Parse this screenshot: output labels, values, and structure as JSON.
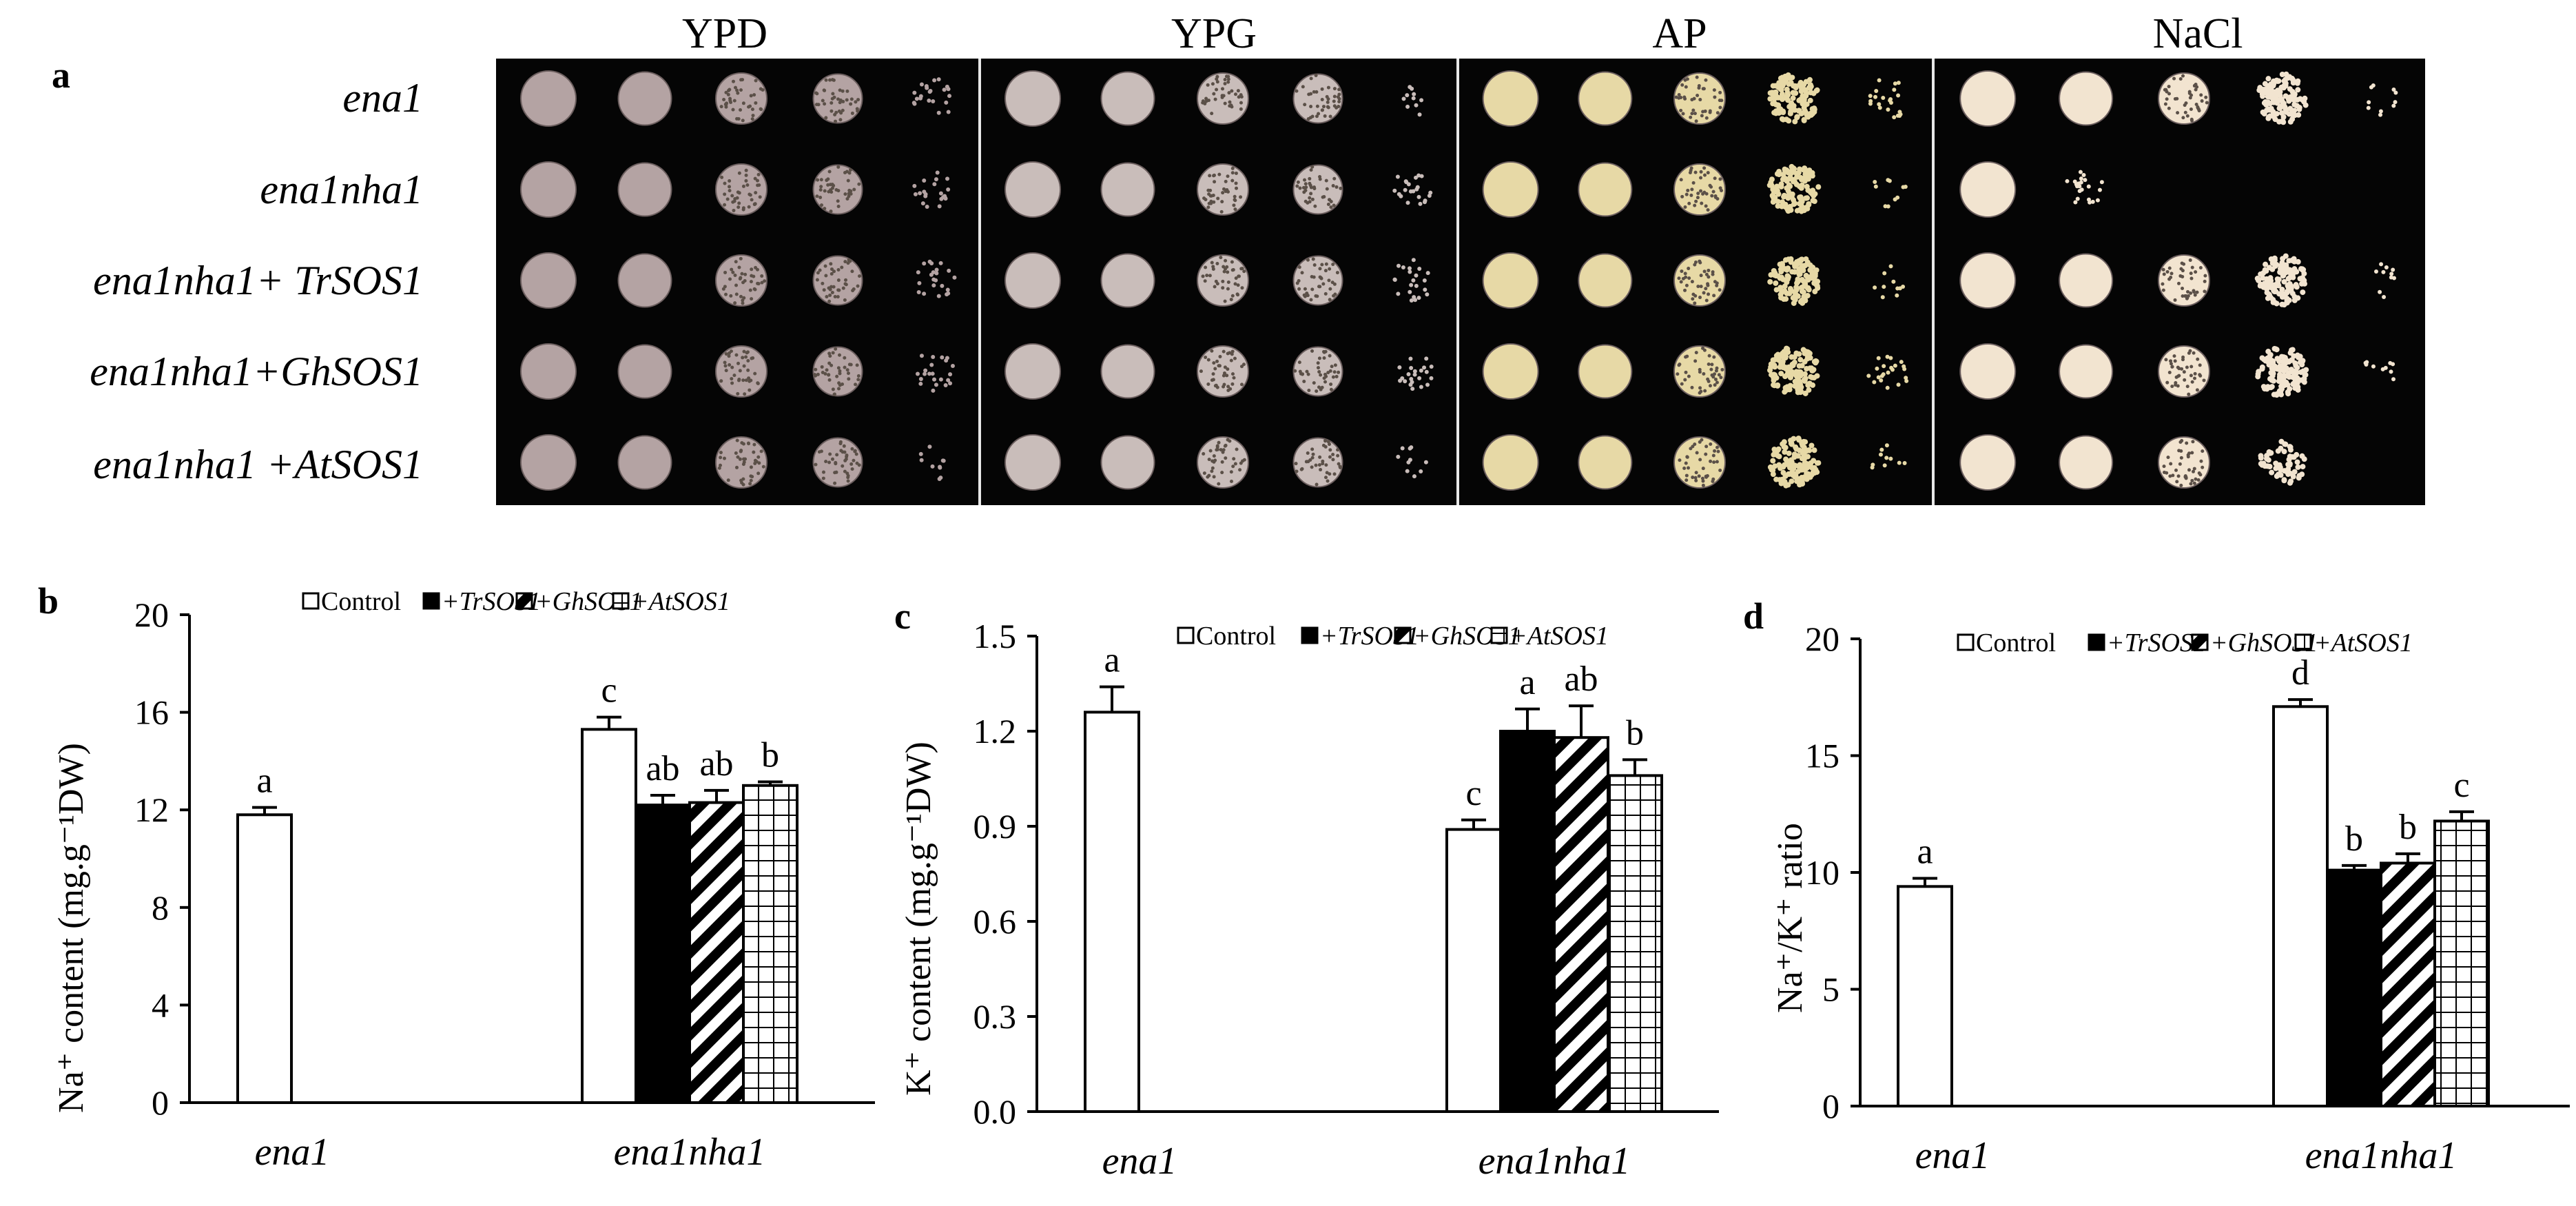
{
  "panel_a": {
    "label": "a",
    "media": [
      "YPD",
      "YPG",
      "AP",
      "NaCl"
    ],
    "strains": [
      "ena1",
      "ena1nha1",
      "ena1nha1+ TrSOS1",
      "ena1nha1+GhSOS1",
      "ena1nha1 +AtSOS1"
    ],
    "colony_growth_levels": {
      "YPD": [
        [
          5,
          5,
          5,
          5,
          2
        ],
        [
          5,
          5,
          5,
          5,
          2
        ],
        [
          5,
          5,
          5,
          5,
          2
        ],
        [
          5,
          5,
          5,
          5,
          2
        ],
        [
          5,
          5,
          5,
          5,
          1
        ]
      ],
      "YPG": [
        [
          5,
          5,
          5,
          5,
          1
        ],
        [
          5,
          5,
          5,
          5,
          2
        ],
        [
          5,
          5,
          5,
          5,
          2
        ],
        [
          5,
          5,
          5,
          5,
          2
        ],
        [
          5,
          5,
          5,
          5,
          1
        ]
      ],
      "AP": [
        [
          5,
          5,
          5,
          4,
          2
        ],
        [
          5,
          5,
          5,
          4,
          1
        ],
        [
          5,
          5,
          5,
          4,
          1
        ],
        [
          5,
          5,
          5,
          4,
          2
        ],
        [
          5,
          5,
          5,
          4,
          1
        ]
      ],
      "NaCl": [
        [
          5,
          5,
          5,
          4,
          1
        ],
        [
          5,
          2,
          0,
          0,
          0
        ],
        [
          5,
          5,
          5,
          4,
          1
        ],
        [
          5,
          5,
          5,
          4,
          1
        ],
        [
          5,
          5,
          5,
          3,
          0
        ]
      ]
    },
    "colors": {
      "background": "#050505",
      "colony_ypd": "#b4a3a3",
      "colony_ypg": "#c9bdba",
      "colony_ap": "#e7d9a6",
      "colony_nacl": "#f2e4d0"
    }
  },
  "legend": [
    {
      "label": "Control",
      "pattern": "open"
    },
    {
      "label": "+TrSOS1",
      "pattern": "solid"
    },
    {
      "label": "+GhSOS1",
      "pattern": "hatched"
    },
    {
      "label": "+AtSOS1",
      "pattern": "grid"
    }
  ],
  "chart_data": [
    {
      "panel": "b",
      "type": "bar",
      "categories": [
        "ena1",
        "ena1nha1"
      ],
      "series": [
        {
          "name": "Control",
          "values": [
            11.8,
            15.3
          ],
          "errors": [
            0.3,
            0.5
          ],
          "letters": [
            "a",
            "c"
          ]
        },
        {
          "name": "+TrSOS1",
          "values": [
            null,
            12.2
          ],
          "errors": [
            null,
            0.4
          ],
          "letters": [
            null,
            "ab"
          ]
        },
        {
          "name": "+GhSOS1",
          "values": [
            null,
            12.3
          ],
          "errors": [
            null,
            0.5
          ],
          "letters": [
            null,
            "ab"
          ]
        },
        {
          "name": "+AtSOS1",
          "values": [
            null,
            13.0
          ],
          "errors": [
            null,
            0.15
          ],
          "letters": [
            null,
            "b"
          ]
        }
      ],
      "ylim": [
        0,
        20
      ],
      "yticks": [
        "0",
        "4",
        "8",
        "12",
        "16",
        "20"
      ],
      "ylabel": "Na⁺ content (mg.g⁻¹DW)",
      "xlabel": ""
    },
    {
      "panel": "c",
      "type": "bar",
      "categories": [
        "ena1",
        "ena1nha1"
      ],
      "series": [
        {
          "name": "Control",
          "values": [
            1.26,
            0.89
          ],
          "errors": [
            0.08,
            0.03
          ],
          "letters": [
            "a",
            "c"
          ]
        },
        {
          "name": "+TrSOS1",
          "values": [
            null,
            1.2
          ],
          "errors": [
            null,
            0.07
          ],
          "letters": [
            null,
            "a"
          ]
        },
        {
          "name": "+GhSOS1",
          "values": [
            null,
            1.18
          ],
          "errors": [
            null,
            0.1
          ],
          "letters": [
            null,
            "ab"
          ]
        },
        {
          "name": "+AtSOS1",
          "values": [
            null,
            1.06
          ],
          "errors": [
            null,
            0.05
          ],
          "letters": [
            null,
            "b"
          ]
        }
      ],
      "ylim": [
        0,
        1.5
      ],
      "yticks": [
        "0.0",
        "0.3",
        "0.6",
        "0.9",
        "1.2",
        "1.5"
      ],
      "ylabel": "K⁺ content (mg.g⁻¹DW)",
      "xlabel": ""
    },
    {
      "panel": "d",
      "type": "bar",
      "categories": [
        "ena1",
        "ena1nha1"
      ],
      "series": [
        {
          "name": "Control",
          "values": [
            9.4,
            17.1
          ],
          "errors": [
            0.35,
            0.3
          ],
          "letters": [
            "a",
            "d"
          ]
        },
        {
          "name": "+TrSOS1",
          "values": [
            null,
            10.1
          ],
          "errors": [
            null,
            0.2
          ],
          "letters": [
            null,
            "b"
          ]
        },
        {
          "name": "+GhSOS1",
          "values": [
            null,
            10.4
          ],
          "errors": [
            null,
            0.4
          ],
          "letters": [
            null,
            "b"
          ]
        },
        {
          "name": "+AtSOS1",
          "values": [
            null,
            12.2
          ],
          "errors": [
            null,
            0.4
          ],
          "letters": [
            null,
            "c"
          ]
        }
      ],
      "ylim": [
        0,
        20
      ],
      "yticks": [
        "0",
        "5",
        "10",
        "15",
        "20"
      ],
      "ylabel": "Na⁺/K⁺ ratio",
      "xlabel": ""
    }
  ]
}
